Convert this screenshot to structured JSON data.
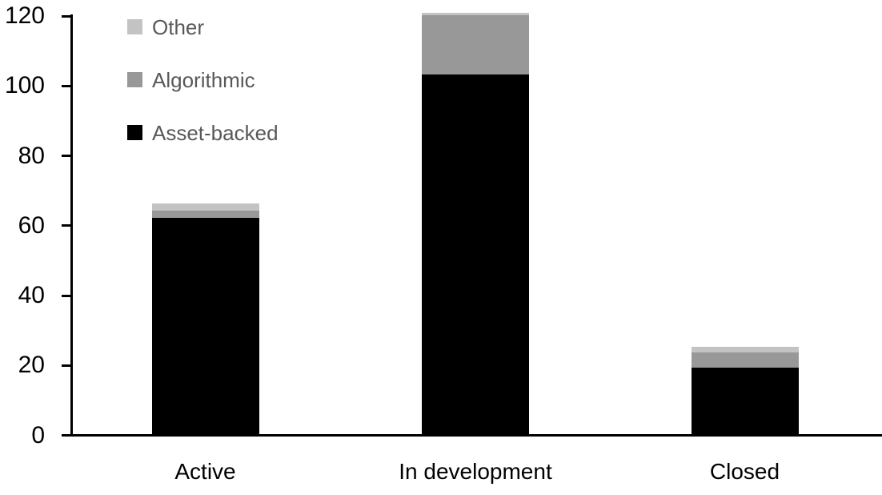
{
  "chart_data": {
    "type": "bar",
    "stacked": true,
    "title": "",
    "xlabel": "",
    "ylabel": "",
    "categories": [
      "Active",
      "In development",
      "Closed"
    ],
    "series": [
      {
        "name": "Asset-backed",
        "color": "#000000",
        "values": [
          62,
          103,
          19
        ]
      },
      {
        "name": "Algorithmic",
        "color": "#989898",
        "values": [
          2,
          17,
          4.5
        ]
      },
      {
        "name": "Other",
        "color": "#c3c3c3",
        "values": [
          2,
          0.5,
          1.5
        ]
      }
    ],
    "totals": [
      66,
      120.5,
      25
    ],
    "ylim": [
      0,
      120
    ],
    "yticks": [
      0,
      20,
      40,
      60,
      80,
      100,
      120
    ],
    "grid": false,
    "legend": {
      "position": "top-left",
      "order": [
        "Other",
        "Algorithmic",
        "Asset-backed"
      ]
    }
  },
  "colors": {
    "axis": "#000000",
    "axis_text": "#000000",
    "legend_text": "#595959",
    "background": "#ffffff"
  }
}
